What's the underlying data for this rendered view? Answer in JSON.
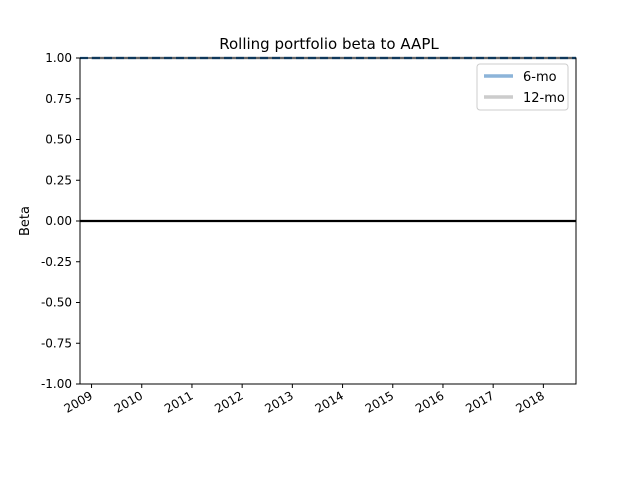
{
  "chart_data": {
    "type": "line",
    "title": "Rolling portfolio beta to AAPL",
    "xlabel": "",
    "ylabel": "Beta",
    "ylim": [
      -1.0,
      1.0
    ],
    "x_ticks": [
      "2009",
      "2010",
      "2011",
      "2012",
      "2013",
      "2014",
      "2015",
      "2016",
      "2017",
      "2018"
    ],
    "y_ticks": [
      "1.00",
      "0.75",
      "0.50",
      "0.25",
      "0.00",
      "-0.25",
      "-0.50",
      "-0.75",
      "-1.00"
    ],
    "y_tick_values": [
      1.0,
      0.75,
      0.5,
      0.25,
      0.0,
      -0.25,
      -0.5,
      -0.75,
      -1.0
    ],
    "x_range": [
      2008.77,
      2018.65
    ],
    "grid": false,
    "legend_position": "top-right",
    "series": [
      {
        "name": "6-mo",
        "color": "#8cb4d9",
        "x": [
          2009.0,
          2018.65
        ],
        "values": [
          1.0,
          1.0
        ]
      },
      {
        "name": "12-mo",
        "color": "#cccccc",
        "x": [
          2009.0,
          2018.65
        ],
        "values": [
          1.0,
          1.0
        ]
      }
    ],
    "reference_lines": [
      {
        "y": 1.0,
        "color": "#1f6fb4",
        "style": "dashed"
      },
      {
        "y": 0.0,
        "color": "#000000",
        "style": "solid"
      }
    ]
  }
}
